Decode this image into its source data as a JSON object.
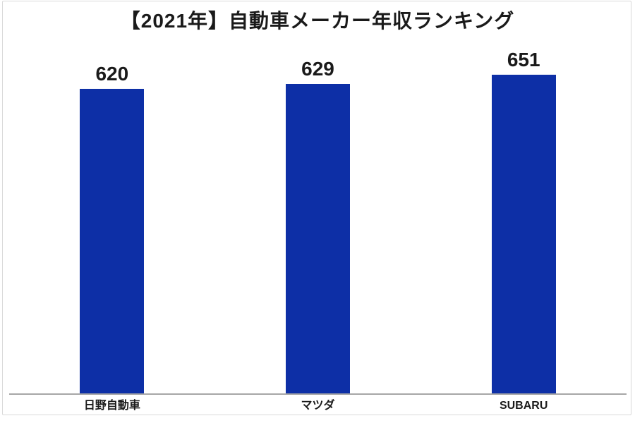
{
  "title": "【2021年】自動車メーカー年収ランキング",
  "chart_data": {
    "type": "bar",
    "title": "【2021年】自動車メーカー年収ランキング",
    "categories": [
      "日野自動車",
      "マツダ",
      "SUBARU"
    ],
    "values": [
      620,
      629,
      651
    ],
    "xlabel": "",
    "ylabel": "",
    "ylim": [
      0,
      700
    ],
    "grid": false,
    "legend": false,
    "value_labels_shown": true,
    "colors": {
      "bar": "#0d2fa6",
      "axis_line": "#a6a6a6",
      "text": "#1a1a1a",
      "frame_border": "#d9d9d9",
      "background": "#ffffff"
    }
  }
}
